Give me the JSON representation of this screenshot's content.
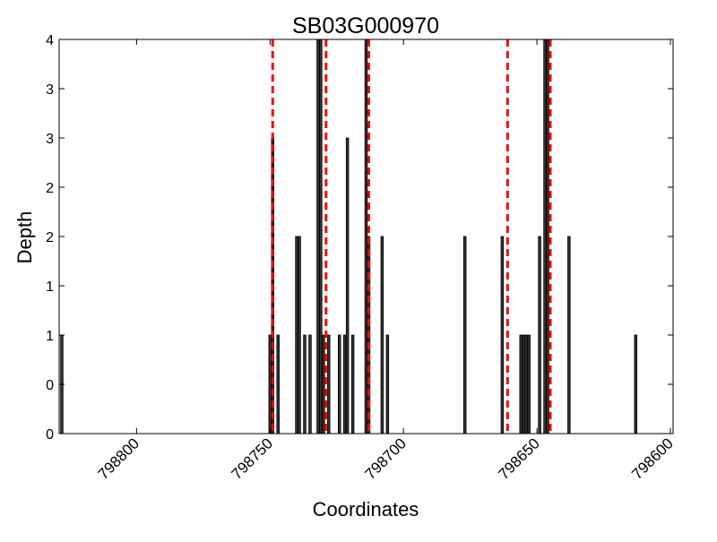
{
  "chart_data": {
    "type": "bar",
    "title": "SB03G000970",
    "xlabel": "Coordinates",
    "ylabel": "Depth",
    "x_axis_reversed": true,
    "xlim": [
      798829,
      798599
    ],
    "ylim": [
      0,
      4
    ],
    "x_ticks": [
      {
        "value": 798800,
        "label": "798800"
      },
      {
        "value": 798750,
        "label": "798750"
      },
      {
        "value": 798700,
        "label": "798700"
      },
      {
        "value": 798650,
        "label": "798650"
      },
      {
        "value": 798600,
        "label": "798600"
      }
    ],
    "y_ticks": [
      {
        "value": 0,
        "label": "0"
      },
      {
        "value": 0.5,
        "label": "0"
      },
      {
        "value": 1,
        "label": "1"
      },
      {
        "value": 1.5,
        "label": "1"
      },
      {
        "value": 2,
        "label": "2"
      },
      {
        "value": 2.5,
        "label": "2"
      },
      {
        "value": 3,
        "label": "3"
      },
      {
        "value": 3.5,
        "label": "3"
      },
      {
        "value": 4,
        "label": "4"
      }
    ],
    "bar_color": "#333333",
    "bar_edge_color": "#000000",
    "bars": [
      {
        "x": 798828,
        "depth": 1
      },
      {
        "x": 798750,
        "depth": 1
      },
      {
        "x": 798749,
        "depth": 3
      },
      {
        "x": 798747,
        "depth": 1
      },
      {
        "x": 798740,
        "depth": 2
      },
      {
        "x": 798739,
        "depth": 2
      },
      {
        "x": 798737,
        "depth": 1
      },
      {
        "x": 798735,
        "depth": 1
      },
      {
        "x": 798732,
        "depth": 4
      },
      {
        "x": 798731,
        "depth": 4
      },
      {
        "x": 798730,
        "depth": 1
      },
      {
        "x": 798728,
        "depth": 1
      },
      {
        "x": 798724,
        "depth": 1
      },
      {
        "x": 798722,
        "depth": 1
      },
      {
        "x": 798721,
        "depth": 3
      },
      {
        "x": 798719,
        "depth": 1
      },
      {
        "x": 798714,
        "depth": 4
      },
      {
        "x": 798713,
        "depth": 2
      },
      {
        "x": 798708,
        "depth": 2
      },
      {
        "x": 798706,
        "depth": 1
      },
      {
        "x": 798677,
        "depth": 2
      },
      {
        "x": 798663,
        "depth": 2
      },
      {
        "x": 798656,
        "depth": 1
      },
      {
        "x": 798655,
        "depth": 1
      },
      {
        "x": 798654,
        "depth": 1
      },
      {
        "x": 798653,
        "depth": 1
      },
      {
        "x": 798649,
        "depth": 2
      },
      {
        "x": 798647,
        "depth": 4
      },
      {
        "x": 798646,
        "depth": 4
      },
      {
        "x": 798638,
        "depth": 2
      },
      {
        "x": 798613,
        "depth": 1
      }
    ],
    "reference_lines": [
      {
        "x": 798749,
        "color": "#ff0000",
        "style": "dashed"
      },
      {
        "x": 798729,
        "color": "#ff0000",
        "style": "dashed"
      },
      {
        "x": 798713,
        "color": "#ff0000",
        "style": "dashed"
      },
      {
        "x": 798661,
        "color": "#ff0000",
        "style": "dashed"
      },
      {
        "x": 798645,
        "color": "#ff0000",
        "style": "dashed"
      }
    ],
    "grid": false,
    "legend": "none"
  }
}
